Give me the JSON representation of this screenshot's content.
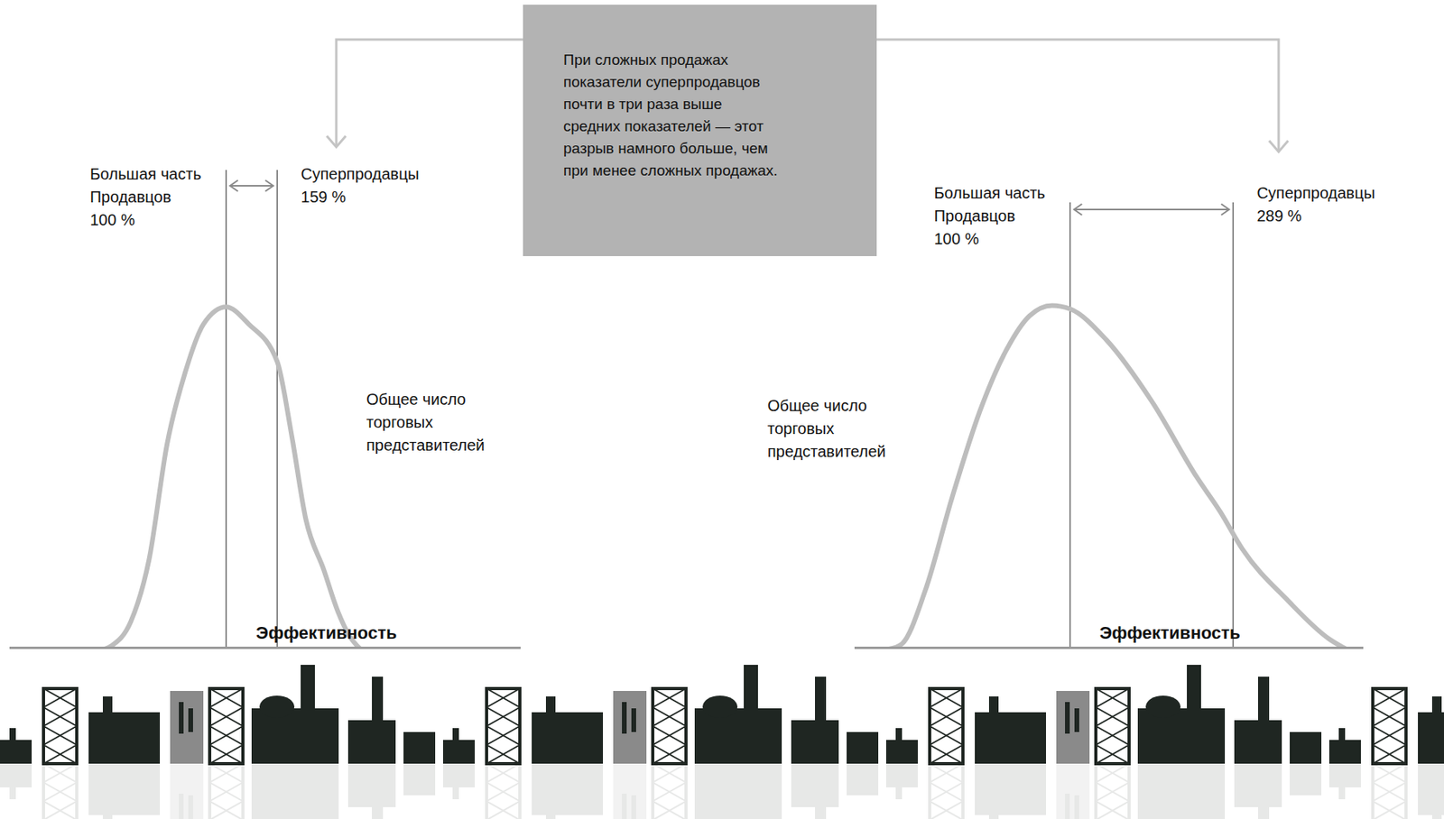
{
  "annotation": "При сложных продажах показатели суперпродавцов почти в три раза выше средних показателей — этот разрыв намного больше, чем при менее сложных продажах.",
  "chart_data": [
    {
      "type": "line",
      "x_label": "Эффективность",
      "y_label": "Общее число торговых представителей",
      "color": "#bdbdbd",
      "x": [
        -40,
        -32,
        -10,
        11,
        32,
        53,
        74,
        100,
        126,
        159,
        176,
        192,
        213,
        229,
        242,
        255
      ],
      "values": [
        0,
        1,
        8,
        26,
        60,
        81,
        95,
        100,
        95,
        84,
        62,
        38,
        23,
        11,
        4,
        0
      ],
      "xlim": [
        -150,
        440
      ],
      "xticks": [
        200,
        300,
        400
      ],
      "ylim": [
        0,
        140
      ],
      "tick_labels": false,
      "reference_lines": [
        {
          "value": 100,
          "label": "100 %",
          "name": "Большая часть Продавцов"
        },
        {
          "value": 159,
          "label": "159 %",
          "name": "Суперпродавцы"
        }
      ]
    },
    {
      "type": "line",
      "x_label": "Эффективность",
      "y_label": "Общее число торговых представителей",
      "color": "#bdbdbd",
      "x": [
        -110,
        -95,
        -68,
        -37,
        -5,
        26,
        53,
        79,
        100,
        142,
        195,
        247,
        274,
        300,
        353,
        400,
        420
      ],
      "values": [
        0,
        1.5,
        17,
        44,
        69,
        87,
        97,
        100,
        99,
        90,
        72,
        50,
        40,
        29,
        14,
        3,
        0
      ],
      "xlim": [
        -150,
        440
      ],
      "xticks": [
        200,
        300,
        400
      ],
      "ylim": [
        0,
        130
      ],
      "tick_labels": false,
      "reference_lines": [
        {
          "value": 100,
          "label": "100 %",
          "name": "Большая часть Продавцов"
        },
        {
          "value": 289,
          "label": "289 %",
          "name": "Суперпродавцы"
        }
      ]
    }
  ]
}
